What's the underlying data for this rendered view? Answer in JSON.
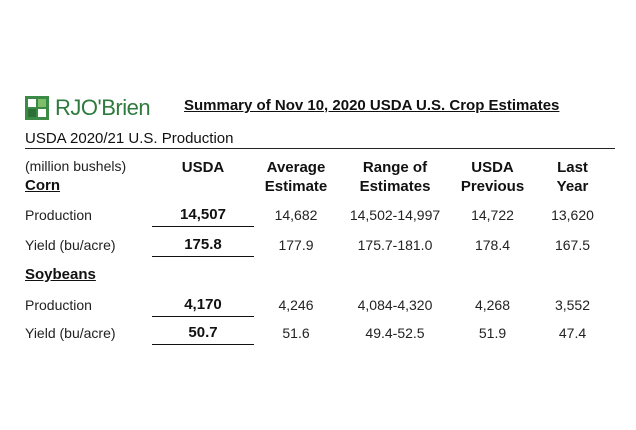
{
  "logo": {
    "icon": "rjobrien-logo-icon",
    "text": "RJO'Brien",
    "color": "#2f7a3e"
  },
  "document_title": "Summary of Nov 10, 2020 USDA U.S. Crop Estimates",
  "section_title": "USDA 2020/21 U.S. Production",
  "units_label": "(million bushels)",
  "columns": [
    {
      "lines": [
        "",
        "USDA"
      ]
    },
    {
      "lines": [
        "Average",
        "Estimate"
      ]
    },
    {
      "lines": [
        "Range of",
        "Estimates"
      ]
    },
    {
      "lines": [
        "USDA",
        "Previous"
      ]
    },
    {
      "lines": [
        "Last",
        "Year"
      ]
    }
  ],
  "crops": [
    {
      "name": "Corn",
      "rows": [
        {
          "label": "Production",
          "values": [
            "14,507",
            "14,682",
            "14,502-14,997",
            "14,722",
            "13,620"
          ]
        },
        {
          "label": "Yield (bu/acre)",
          "values": [
            "175.8",
            "177.9",
            "175.7-181.0",
            "178.4",
            "167.5"
          ]
        }
      ]
    },
    {
      "name": "Soybeans",
      "rows": [
        {
          "label": "Production",
          "values": [
            "4,170",
            "4,246",
            "4,084-4,320",
            "4,268",
            "3,552"
          ]
        },
        {
          "label": "Yield (bu/acre)",
          "values": [
            "50.7",
            "51.6",
            "49.4-52.5",
            "51.9",
            "47.4"
          ]
        }
      ]
    }
  ]
}
